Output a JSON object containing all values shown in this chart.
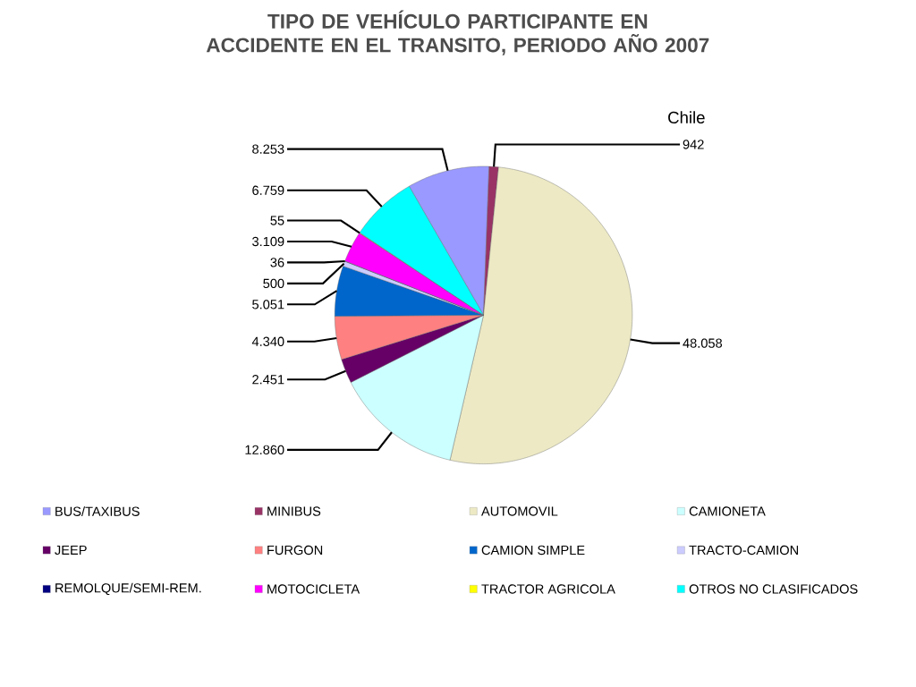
{
  "chart_data": {
    "type": "pie",
    "title": "TIPO DE VEHÍCULO PARTICIPANTE EN ACCIDENTE EN EL TRANSITO, PERIODO AÑO 2007",
    "categories": [
      "BUS/TAXIBUS",
      "MINIBUS",
      "AUTOMOVIL",
      "CAMIONETA",
      "JEEP",
      "FURGON",
      "CAMION SIMPLE",
      "TRACTO-CAMION",
      "REMOLQUE/SEMI-REM.",
      "MOTOCICLETA",
      "TRACTOR AGRICOLA",
      "OTROS NO CLASIFICADOS"
    ],
    "values": [
      8253,
      942,
      48058,
      12860,
      2451,
      4340,
      5051,
      500,
      36,
      3109,
      55,
      6759
    ],
    "value_labels": [
      "8.253",
      "942",
      "48.058",
      "12.860",
      "2.451",
      "4.340",
      "5.051",
      "500",
      "36",
      "3.109",
      "55",
      "6.759"
    ],
    "colors": [
      "#9999ff",
      "#993366",
      "#ece9c4",
      "#ccffff",
      "#660066",
      "#ff8080",
      "#0066cc",
      "#ccccff",
      "#000080",
      "#ff00ff",
      "#ffff00",
      "#00ffff"
    ],
    "legend": "bottom",
    "annotations": [
      "Chile"
    ]
  }
}
